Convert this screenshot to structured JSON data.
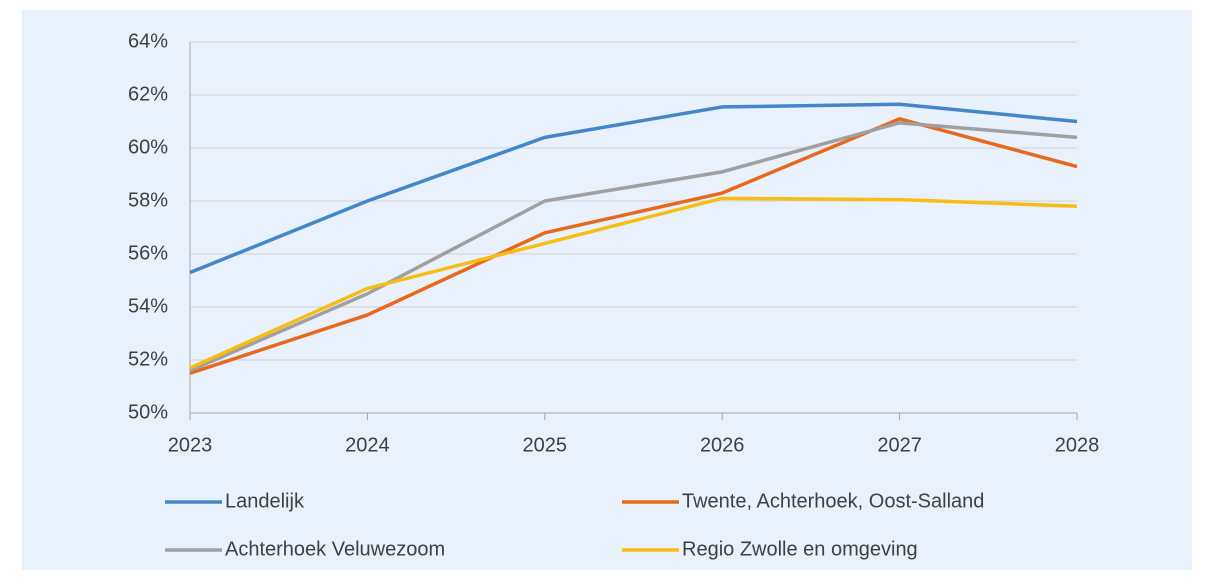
{
  "chart_data": {
    "type": "line",
    "categories": [
      "2023",
      "2024",
      "2025",
      "2026",
      "2027",
      "2028"
    ],
    "series": [
      {
        "name": "Landelijk",
        "color": "#4287c8",
        "values": [
          55.3,
          58.0,
          60.4,
          61.55,
          61.65,
          61.0
        ]
      },
      {
        "name": "Twente, Achterhoek, Oost-Salland",
        "color": "#e8691c",
        "values": [
          51.5,
          53.7,
          56.8,
          58.3,
          61.1,
          59.3
        ]
      },
      {
        "name": "Achterhoek Veluwezoom",
        "color": "#a0a0a0",
        "values": [
          51.6,
          54.5,
          58.0,
          59.1,
          60.95,
          60.4
        ]
      },
      {
        "name": "Regio Zwolle en omgeving",
        "color": "#f7bd14",
        "values": [
          51.7,
          54.7,
          56.4,
          58.1,
          58.05,
          57.8
        ]
      }
    ],
    "ylim": [
      50,
      64
    ],
    "yticks": [
      {
        "value": 50,
        "label": "50%"
      },
      {
        "value": 52,
        "label": "52%"
      },
      {
        "value": 54,
        "label": "54%"
      },
      {
        "value": 56,
        "label": "56%"
      },
      {
        "value": 58,
        "label": "58%"
      },
      {
        "value": 60,
        "label": "60%"
      },
      {
        "value": 62,
        "label": "62%"
      },
      {
        "value": 64,
        "label": "64%"
      }
    ],
    "grid": true,
    "legend": "bottom"
  }
}
